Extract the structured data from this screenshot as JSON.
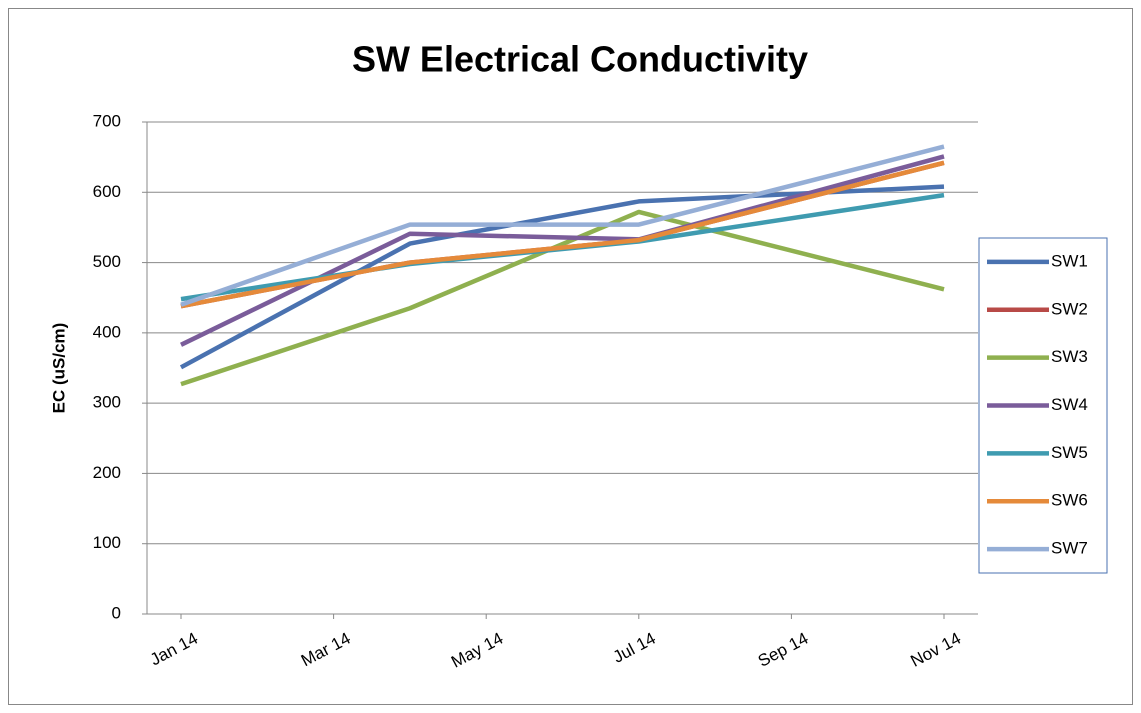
{
  "chart_data": {
    "type": "line",
    "title": "SW Electrical Conductivity",
    "y_label": "EC (uS/cm)",
    "x": [
      "2014-01",
      "2014-04",
      "2014-07",
      "2014-11"
    ],
    "xlim": [
      "2014-01",
      "2014-11"
    ],
    "xticks": [
      {
        "value": "2014-01",
        "label": "Jan 14"
      },
      {
        "value": "2014-03",
        "label": "Mar 14"
      },
      {
        "value": "2014-05",
        "label": "May 14"
      },
      {
        "value": "2014-07",
        "label": "Jul 14"
      },
      {
        "value": "2014-09",
        "label": "Sep 14"
      },
      {
        "value": "2014-11",
        "label": "Nov 14"
      }
    ],
    "ylim": [
      0,
      700
    ],
    "yticks": [
      0,
      100,
      200,
      300,
      400,
      500,
      600,
      700
    ],
    "grid": true,
    "legend": "right",
    "series": [
      {
        "name": "SW1",
        "color": "#4a72b0",
        "values": [
          351,
          527,
          587,
          608
        ]
      },
      {
        "name": "SW2",
        "color": "#b84a47",
        "values": [
          438,
          500,
          532,
          642
        ]
      },
      {
        "name": "SW3",
        "color": "#8fb04f",
        "values": [
          327,
          435,
          572,
          462
        ]
      },
      {
        "name": "SW4",
        "color": "#7a5c9a",
        "values": [
          383,
          541,
          533,
          651
        ]
      },
      {
        "name": "SW5",
        "color": "#3f9bb0",
        "values": [
          448,
          498,
          530,
          596
        ]
      },
      {
        "name": "SW6",
        "color": "#e58a3a",
        "values": [
          438,
          500,
          532,
          642
        ]
      },
      {
        "name": "SW7",
        "color": "#95aed6",
        "values": [
          440,
          554,
          554,
          665
        ]
      }
    ]
  }
}
